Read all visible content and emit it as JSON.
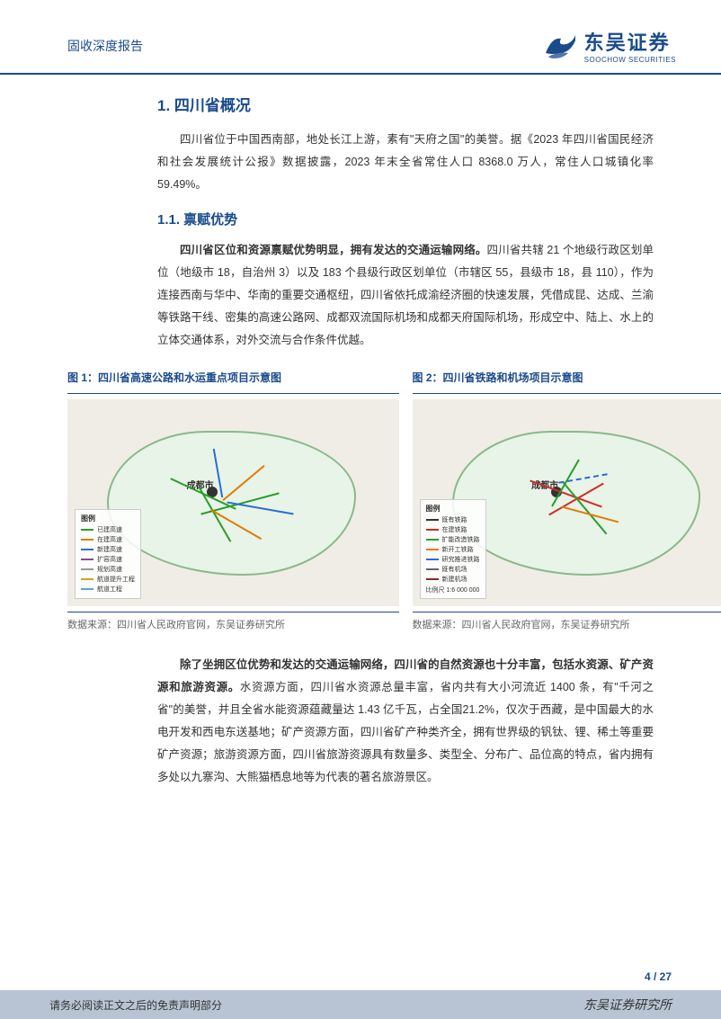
{
  "header": {
    "report_type": "固收深度报告",
    "company_cn": "东吴证券",
    "company_en": "SOOCHOW SECURITIES",
    "logo_color": "#1a4b8c"
  },
  "section1": {
    "title": "1.  四川省概况",
    "intro": "四川省位于中国西南部，地处长江上游，素有\"天府之国\"的美誉。据《2023 年四川省国民经济和社会发展统计公报》数据披露，2023 年末全省常住人口 8368.0 万人，常住人口城镇化率 59.49%。"
  },
  "section1_1": {
    "title": "1.1.  禀赋优势",
    "para1_bold": "四川省区位和资源禀赋优势明显，拥有发达的交通运输网络。",
    "para1_rest": "四川省共辖 21 个地级行政区划单位（地级市 18，自治州 3）以及 183 个县级行政区划单位（市辖区 55，县级市 18，县 110），作为连接西南与华中、华南的重要交通枢纽，四川省依托成渝经济圈的快速发展，凭借成昆、达成、兰渝等铁路干线、密集的高速公路网、成都双流国际机场和成都天府国际机场，形成空中、陆上、水上的立体交通体系，对外交流与合作条件优越。",
    "para2_bold": "除了坐拥区位优势和发达的交通运输网络，四川省的自然资源也十分丰富，包括水资源、矿产资源和旅游资源。",
    "para2_rest": "水资源方面，四川省水资源总量丰富，省内共有大小河流近 1400 条，有\"千河之省\"的美誉，并且全省水能资源蕴藏量达 1.43 亿千瓦，占全国21.2%，仅次于西藏，是中国最大的水电开发和西电东送基地；矿产资源方面，四川省矿产种类齐全，拥有世界级的钒钛、锂、稀土等重要矿产资源；旅游资源方面，四川省旅游资源具有数量多、类型全、分布广、品位高的特点，省内拥有多处以九寨沟、大熊猫栖息地等为代表的著名旅游景区。"
  },
  "figures": {
    "fig1": {
      "title": "图 1：四川省高速公路和水运重点项目示意图",
      "center_label": "成都市",
      "legend_title": "图例",
      "legend_items": [
        {
          "label": "已建高速",
          "color": "#2a9d2a"
        },
        {
          "label": "在建高速",
          "color": "#e07b00"
        },
        {
          "label": "新建高速",
          "color": "#2a6dd4"
        },
        {
          "label": "扩容高速",
          "color": "#8b4a8b"
        },
        {
          "label": "规划高速",
          "color": "#999999"
        },
        {
          "label": "航道提升工程",
          "color": "#d4a02a"
        },
        {
          "label": "航道工程",
          "color": "#5aa5d4"
        }
      ],
      "source": "数据来源：四川省人民政府官网，东吴证券研究所"
    },
    "fig2": {
      "title": "图 2：四川省铁路和机场项目示意图",
      "center_label": "成都市",
      "legend_title": "图例",
      "legend_items": [
        {
          "label": "既有铁路",
          "color": "#333333"
        },
        {
          "label": "在建铁路",
          "color": "#d42a2a"
        },
        {
          "label": "扩能改造铁路",
          "color": "#2a9d2a"
        },
        {
          "label": "新开工铁路",
          "color": "#e07b00"
        },
        {
          "label": "研究推进铁路",
          "color": "#2a6dd4"
        },
        {
          "label": "既有机场",
          "color": "#666666"
        },
        {
          "label": "新建机场",
          "color": "#8b2a2a"
        }
      ],
      "scale": "比例尺 1:6 000 000",
      "source": "数据来源：四川省人民政府官网，东吴证券研究所"
    }
  },
  "footer": {
    "page": "4 / 27",
    "disclaimer": "请务必阅读正文之后的免责声明部分",
    "institute": "东吴证券研究所"
  },
  "colors": {
    "primary": "#1a4b8c",
    "text": "#333333",
    "footer_bg": "#b8c4d4",
    "map_bg": "#f0ede6",
    "map_fill": "#e8f4e8",
    "map_border": "#8bb88b"
  }
}
